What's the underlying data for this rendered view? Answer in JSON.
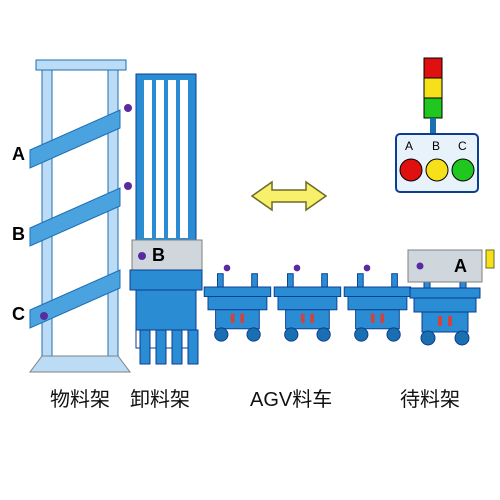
{
  "colors": {
    "main_blue": "#2a8dd4",
    "main_blue_dark": "#1a6fb0",
    "outline": "#0b3d91",
    "light_blue": "#bcdcf5",
    "tower_fill": "#4aa3de",
    "tower_outline": "#1d6fb5",
    "black": "#000000",
    "red": "#e01010",
    "yellow": "#f6e01a",
    "green": "#1fc71f",
    "dot_purple": "#5a2aa0",
    "arrow_fill": "#f8f06a",
    "arrow_stroke": "#6b6b2a",
    "grey": "#808080",
    "caption_color": "#111111"
  },
  "rack": {
    "labels": [
      "A",
      "B",
      "C"
    ]
  },
  "tower": {
    "red": "#e01010",
    "yellow": "#f6e01a",
    "green": "#1fc71f"
  },
  "panel": {
    "labels": [
      "A",
      "B",
      "C"
    ],
    "light_colors": [
      "#e01010",
      "#f6e01a",
      "#1fc71f"
    ]
  },
  "cart_labels": {
    "unload": "B",
    "wait": "A"
  },
  "captions": {
    "rack": "物料架",
    "unload": "卸料架",
    "agv": "AGV料车",
    "wait": "待料架"
  }
}
